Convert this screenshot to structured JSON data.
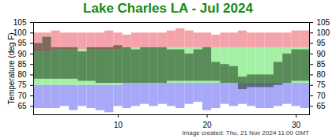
{
  "chart_data": {
    "type": "range_bar",
    "title": "Lake Charles LA - Jul 2024",
    "y_label": "Temperature (deg F)",
    "caption": "Image created: Thu, 21 Nov 2024 11:00 GMT",
    "x": [
      1,
      2,
      3,
      4,
      5,
      6,
      7,
      8,
      9,
      10,
      11,
      12,
      13,
      14,
      15,
      16,
      17,
      18,
      19,
      20,
      21,
      22,
      23,
      24,
      25,
      26,
      27,
      28,
      29,
      30,
      31
    ],
    "xlim": [
      0.5,
      31.5
    ],
    "xticks": [
      10,
      20,
      30
    ],
    "ylim": [
      61,
      105
    ],
    "yticks": [
      65,
      70,
      75,
      80,
      85,
      90,
      95,
      100,
      105
    ],
    "y2lim": [
      61,
      105
    ],
    "y2ticks": [
      65,
      70,
      75,
      80,
      85,
      90,
      95,
      100,
      105
    ],
    "grid": false,
    "record_high": [
      100,
      100,
      101,
      100,
      100,
      100,
      100,
      100,
      101,
      100,
      99,
      100,
      100,
      100,
      100,
      101,
      102,
      101,
      100,
      100,
      99,
      100,
      100,
      101,
      100,
      100,
      100,
      100,
      100,
      101,
      101
    ],
    "normal_high": [
      91,
      91,
      92,
      92,
      92,
      92,
      92,
      92,
      92,
      92,
      93,
      93,
      93,
      93,
      93,
      93,
      93,
      93,
      93,
      93,
      93,
      93,
      93,
      93,
      93,
      93,
      93,
      93,
      93,
      93,
      93
    ],
    "normal_low": [
      75,
      75,
      75,
      75,
      75,
      75,
      75,
      75,
      75,
      75,
      76,
      76,
      76,
      76,
      76,
      76,
      76,
      76,
      76,
      76,
      76,
      76,
      76,
      76,
      76,
      76,
      76,
      76,
      76,
      76,
      76
    ],
    "record_low": [
      64,
      64,
      64,
      65,
      63,
      65,
      64,
      63,
      62,
      65,
      64,
      65,
      66,
      65,
      66,
      65,
      64,
      66,
      67,
      63,
      64,
      66,
      65,
      66,
      65,
      64,
      64,
      65,
      66,
      65,
      64
    ],
    "observed_high": [
      95,
      98,
      93,
      93,
      93,
      91,
      93,
      93,
      93,
      94,
      93,
      92,
      93,
      93,
      93,
      92,
      92,
      90,
      92,
      93,
      86,
      85,
      84,
      79,
      80,
      80,
      80,
      86,
      90,
      92,
      92
    ],
    "observed_low": [
      78,
      78,
      78,
      78,
      78,
      77,
      77,
      76,
      76,
      76,
      76,
      76,
      76,
      76,
      76,
      77,
      77,
      77,
      77,
      77,
      77,
      76,
      76,
      73,
      74,
      74,
      74,
      75,
      76,
      77,
      77
    ],
    "colors": {
      "record_high": "#f5a3ab",
      "normal": "#a4f0a4",
      "record_low": "#a8a8f8",
      "observed": "#1e3a1e"
    }
  }
}
